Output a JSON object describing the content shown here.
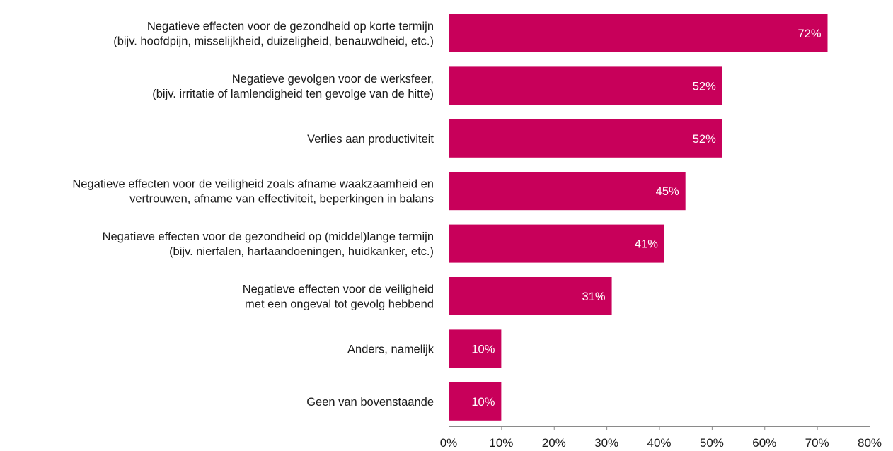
{
  "chart_data": {
    "type": "bar",
    "orientation": "horizontal",
    "bar_color": "#C8005A",
    "categories": [
      [
        "Negatieve effecten voor de gezondheid op korte termijn",
        "(bijv. hoofdpijn, misselijkheid, duizeligheid, benauwdheid, etc.)"
      ],
      [
        "Negatieve gevolgen voor de werksfeer,",
        "(bijv. irritatie of lamlendigheid ten gevolge van de hitte)"
      ],
      [
        "Verlies aan productiviteit"
      ],
      [
        "Negatieve effecten voor de veiligheid zoals afname waakzaamheid en",
        "vertrouwen, afname van effectiviteit, beperkingen in balans"
      ],
      [
        "Negatieve effecten voor de gezondheid op (middel)lange termijn",
        "(bijv. nierfalen, hartaandoeningen, huidkanker, etc.)"
      ],
      [
        "Negatieve effecten voor de veiligheid",
        "met een ongeval tot gevolg hebbend"
      ],
      [
        "Anders, namelijk"
      ],
      [
        "Geen van bovenstaande"
      ]
    ],
    "values": [
      72,
      52,
      52,
      45,
      41,
      31,
      10,
      10
    ],
    "value_labels": [
      "72%",
      "52%",
      "52%",
      "45%",
      "41%",
      "31%",
      "10%",
      "10%"
    ],
    "xlim": [
      0,
      80
    ],
    "x_ticks": [
      0,
      10,
      20,
      30,
      40,
      50,
      60,
      70,
      80
    ],
    "x_tick_labels": [
      "0%",
      "10%",
      "20%",
      "30%",
      "40%",
      "50%",
      "60%",
      "70%",
      "80%"
    ],
    "grid": false,
    "legend": "none"
  }
}
